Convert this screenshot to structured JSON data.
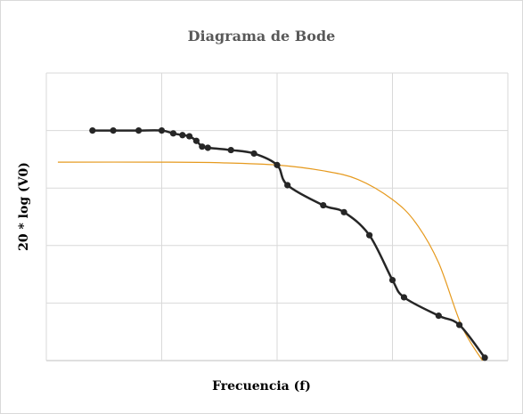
{
  "chart_data": {
    "type": "line",
    "title": "Diagrama de Bode",
    "xlabel": "Frecuencia (f)",
    "ylabel": "20 * log (V0)",
    "xlim": [
      0,
      4
    ],
    "ylim": [
      -5,
      0
    ],
    "grid": true,
    "tick_labels_visible": false,
    "legend": "none",
    "series": [
      {
        "color": "#262626",
        "line": "smooth",
        "markers": true,
        "points": [
          [
            0.4,
            -1.0
          ],
          [
            0.58,
            -1.0
          ],
          [
            0.8,
            -1.0
          ],
          [
            1.0,
            -1.0
          ],
          [
            1.1,
            -1.05
          ],
          [
            1.18,
            -1.08
          ],
          [
            1.24,
            -1.1
          ],
          [
            1.3,
            -1.18
          ],
          [
            1.35,
            -1.28
          ],
          [
            1.4,
            -1.3
          ],
          [
            1.6,
            -1.34
          ],
          [
            1.8,
            -1.4
          ],
          [
            2.0,
            -1.6
          ],
          [
            2.09,
            -1.95
          ],
          [
            2.4,
            -2.3
          ],
          [
            2.58,
            -2.42
          ],
          [
            2.8,
            -2.82
          ],
          [
            3.0,
            -3.6
          ],
          [
            3.1,
            -3.9
          ],
          [
            3.4,
            -4.22
          ],
          [
            3.58,
            -4.38
          ],
          [
            3.8,
            -4.95
          ]
        ]
      },
      {
        "color": "#E69A1E",
        "line": "smooth",
        "markers": false,
        "points": [
          [
            0.1,
            -1.55
          ],
          [
            1.0,
            -1.55
          ],
          [
            1.5,
            -1.56
          ],
          [
            2.0,
            -1.6
          ],
          [
            2.4,
            -1.7
          ],
          [
            2.7,
            -1.85
          ],
          [
            3.0,
            -2.2
          ],
          [
            3.2,
            -2.6
          ],
          [
            3.4,
            -3.3
          ],
          [
            3.6,
            -4.4
          ],
          [
            3.78,
            -5.0
          ]
        ]
      }
    ]
  }
}
